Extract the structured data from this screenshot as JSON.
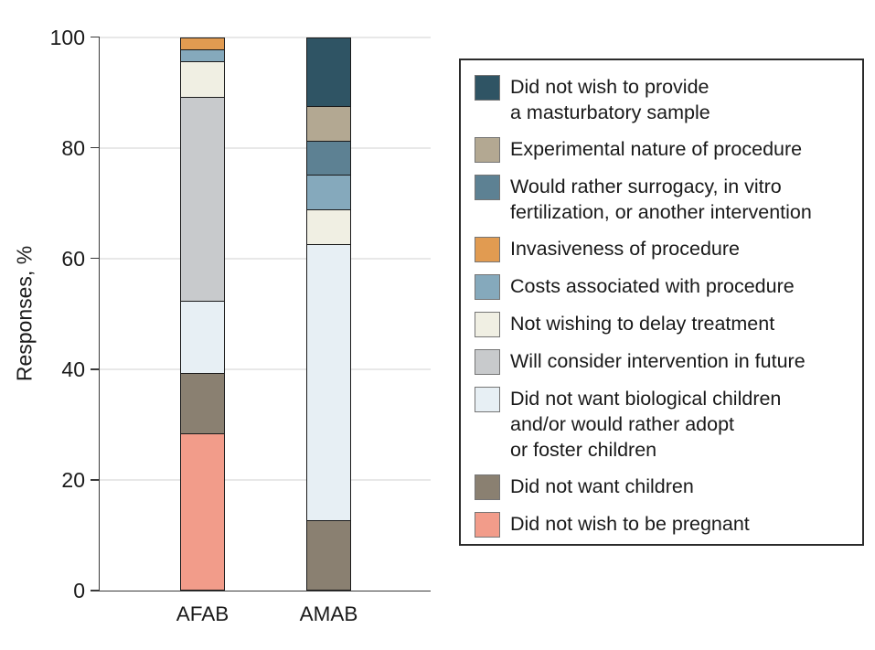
{
  "chart_data": {
    "type": "bar",
    "variant": "stacked-vertical-percent",
    "title": "",
    "xlabel": "",
    "ylabel": "Responses, %",
    "ylim": [
      0,
      100
    ],
    "yticks": [
      0,
      20,
      40,
      60,
      80,
      100
    ],
    "grid": "horizontal",
    "legend_position": "right",
    "categories": [
      "AFAB",
      "AMAB"
    ],
    "stack_order": "legend order, top of bar to bottom of bar",
    "series": [
      {
        "name": "Did not wish to provide a masturbatory sample",
        "label_lines": [
          "Did not wish to provide",
          "a masturbatory sample"
        ],
        "color": "#2F5464",
        "values": [
          0,
          12.5
        ]
      },
      {
        "name": "Experimental nature of procedure",
        "label_lines": [
          "Experimental nature of procedure"
        ],
        "color": "#B3A892",
        "values": [
          0,
          6.25
        ]
      },
      {
        "name": "Would rather surrogacy, in vitro fertilization, or another intervention",
        "label_lines": [
          "Would rather surrogacy, in vitro",
          "fertilization, or another intervention"
        ],
        "color": "#5D8193",
        "values": [
          0,
          6.25
        ]
      },
      {
        "name": "Invasiveness of procedure",
        "label_lines": [
          "Invasiveness of procedure"
        ],
        "color": "#E19B51",
        "values": [
          2.2,
          0
        ]
      },
      {
        "name": "Costs associated with procedure",
        "label_lines": [
          "Costs associated with procedure"
        ],
        "color": "#85A9BC",
        "values": [
          2.2,
          6.25
        ]
      },
      {
        "name": "Not wishing to delay treatment",
        "label_lines": [
          "Not wishing to delay treatment"
        ],
        "color": "#F0EFE3",
        "values": [
          6.5,
          6.25
        ]
      },
      {
        "name": "Will consider intervention in future",
        "label_lines": [
          "Will consider intervention in future"
        ],
        "color": "#C8CACC",
        "values": [
          36.9,
          0
        ]
      },
      {
        "name": "Did not want biological children and/or would rather adopt or foster children",
        "label_lines": [
          "Did not want biological children",
          "and/or would rather adopt",
          "or foster children"
        ],
        "color": "#E7EFF4",
        "values": [
          13.1,
          50
        ]
      },
      {
        "name": "Did not want children",
        "label_lines": [
          "Did not want children"
        ],
        "color": "#8A8071",
        "values": [
          10.9,
          12.5
        ]
      },
      {
        "name": "Did not wish to be pregnant",
        "label_lines": [
          "Did not wish to be pregnant"
        ],
        "color": "#F29C8A",
        "values": [
          28.2,
          0
        ]
      }
    ]
  }
}
